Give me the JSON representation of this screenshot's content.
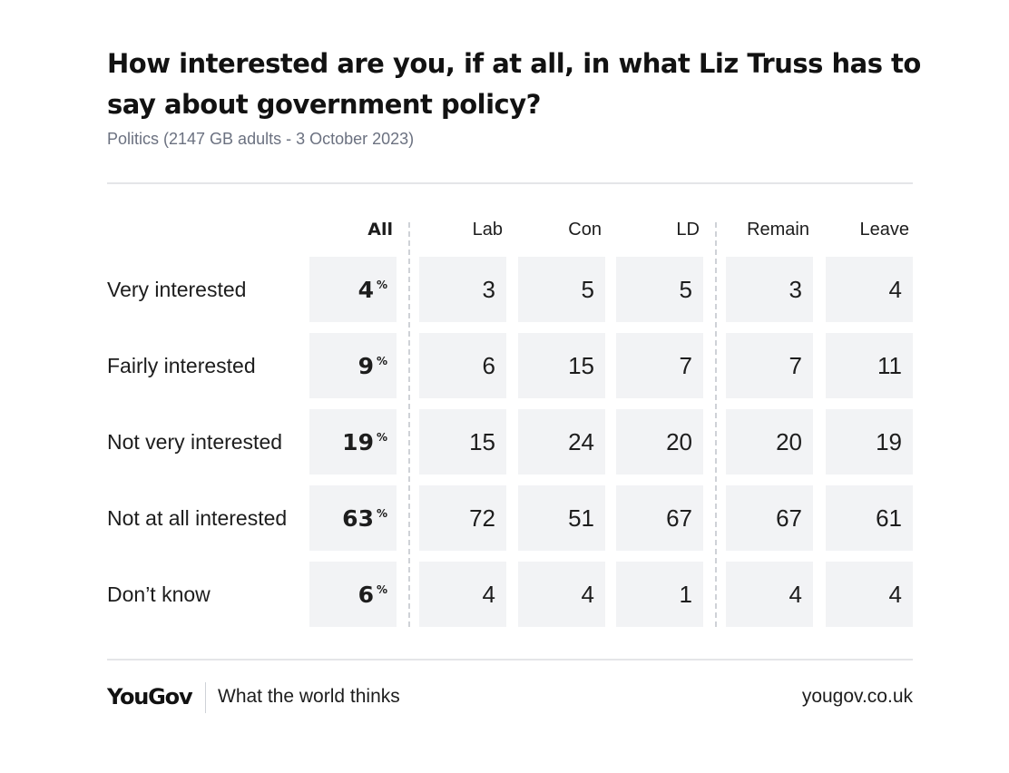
{
  "title": "How interested are you, if at all, in what Liz Truss has to say about government policy?",
  "subtitle": "Politics (2147 GB adults - 3 October 2023)",
  "footer": {
    "logo": "YouGov",
    "tagline": "What the world thinks",
    "url": "yougov.co.uk"
  },
  "chart_data": {
    "type": "table",
    "title": "How interested are you, if at all, in what Liz Truss has to say about government policy?",
    "subtitle": "Politics (2147 GB adults - 3 October 2023)",
    "columns": [
      "All",
      "Lab",
      "Con",
      "LD",
      "Remain",
      "Leave"
    ],
    "unit": "%",
    "rows": [
      {
        "label": "Very interested",
        "values": [
          4,
          3,
          5,
          5,
          3,
          4
        ]
      },
      {
        "label": "Fairly interested",
        "values": [
          9,
          6,
          15,
          7,
          7,
          11
        ]
      },
      {
        "label": "Not very interested",
        "values": [
          19,
          15,
          24,
          20,
          20,
          19
        ]
      },
      {
        "label": "Not at all interested",
        "values": [
          63,
          72,
          51,
          67,
          67,
          61
        ]
      },
      {
        "label": "Don’t know",
        "values": [
          6,
          4,
          4,
          1,
          4,
          4
        ]
      }
    ],
    "colors": {
      "cell_background": "#f2f3f5",
      "subtitle": "#6b7180",
      "divider": "#cfd2d7"
    }
  }
}
